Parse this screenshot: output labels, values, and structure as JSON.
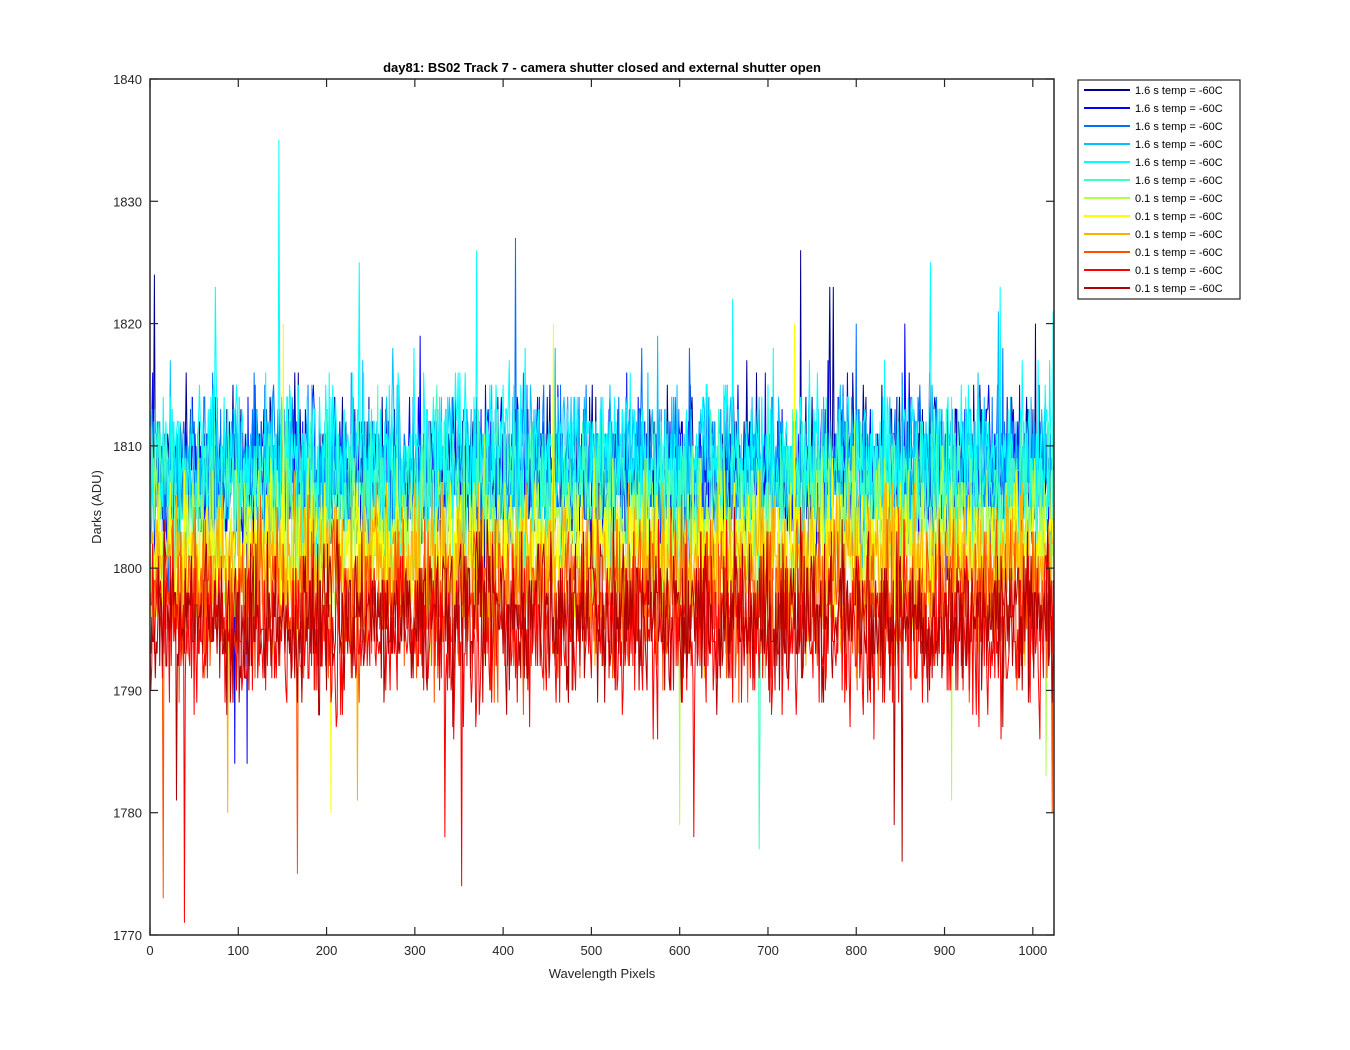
{
  "chart_data": {
    "type": "line",
    "title": "day81: BS02  Track 7 - camera shutter closed and external shutter open",
    "xlabel": "Wavelength Pixels",
    "ylabel": "Darks (ADU)",
    "xlim": [
      0,
      1024
    ],
    "ylim": [
      1770,
      1840
    ],
    "xticks": [
      0,
      100,
      200,
      300,
      400,
      500,
      600,
      700,
      800,
      900,
      1000
    ],
    "yticks": [
      1770,
      1780,
      1790,
      1800,
      1810,
      1820,
      1830,
      1840
    ],
    "grid": false,
    "legend_position": "outside-top-right",
    "n_points": 1024,
    "series": [
      {
        "name": "1.6 s temp = -60C",
        "color": "#00008f",
        "mean": 1808,
        "spread": 3.2,
        "spikes": [
          [
            5,
            1824
          ],
          [
            737,
            1826
          ],
          [
            770,
            1823
          ],
          [
            774,
            1823
          ],
          [
            1003,
            1820
          ]
        ]
      },
      {
        "name": "1.6 s temp = -60C",
        "color": "#0000ff",
        "mean": 1807.5,
        "spread": 3.2,
        "spikes": [
          [
            3,
            1816
          ],
          [
            96,
            1784
          ],
          [
            110,
            1784
          ],
          [
            306,
            1819
          ],
          [
            855,
            1820
          ]
        ]
      },
      {
        "name": "1.6 s temp = -60C",
        "color": "#0070ff",
        "mean": 1807.5,
        "spread": 3.2,
        "spikes": [
          [
            414,
            1827
          ],
          [
            557,
            1818
          ],
          [
            611,
            1818
          ],
          [
            800,
            1820
          ]
        ]
      },
      {
        "name": "1.6 s temp = -60C",
        "color": "#00bfff",
        "mean": 1808,
        "spread": 3.2,
        "spikes": [
          [
            275,
            1818
          ],
          [
            459,
            1818
          ],
          [
            575,
            1819
          ],
          [
            961,
            1821
          ]
        ]
      },
      {
        "name": "1.6 s temp = -60C",
        "color": "#00ffff",
        "mean": 1809,
        "spread": 3.2,
        "spikes": [
          [
            146,
            1835
          ],
          [
            74,
            1823
          ],
          [
            237,
            1825
          ],
          [
            370,
            1826
          ],
          [
            660,
            1822
          ],
          [
            884,
            1825
          ],
          [
            963,
            1823
          ],
          [
            1023,
            1821
          ]
        ]
      },
      {
        "name": "1.6 s temp = -60C",
        "color": "#40ffbf",
        "mean": 1806,
        "spread": 3.2,
        "spikes": [
          [
            690,
            1777
          ],
          [
            691,
            1787
          ]
        ]
      },
      {
        "name": "0.1 s temp = -60C",
        "color": "#afff50",
        "mean": 1802,
        "spread": 3.2,
        "spikes": [
          [
            600,
            1779
          ],
          [
            908,
            1781
          ],
          [
            1015,
            1783
          ]
        ]
      },
      {
        "name": "0.1 s temp = -60C",
        "color": "#ffff00",
        "mean": 1801,
        "spread": 3.2,
        "spikes": [
          [
            151,
            1820
          ],
          [
            205,
            1780
          ],
          [
            457,
            1820
          ],
          [
            730,
            1820
          ]
        ]
      },
      {
        "name": "0.1 s temp = -60C",
        "color": "#ffaf00",
        "mean": 1800,
        "spread": 3.2,
        "spikes": [
          [
            88,
            1780
          ],
          [
            235,
            1781
          ]
        ]
      },
      {
        "name": "0.1 s temp = -60C",
        "color": "#ff5000",
        "mean": 1797,
        "spread": 3.2,
        "spikes": [
          [
            15,
            1773
          ],
          [
            167,
            1775
          ],
          [
            1022,
            1780
          ]
        ]
      },
      {
        "name": "0.1 s temp = -60C",
        "color": "#ff0000",
        "mean": 1795,
        "spread": 3.2,
        "spikes": [
          [
            39,
            1771
          ],
          [
            353,
            1774
          ],
          [
            334,
            1778
          ],
          [
            616,
            1778
          ]
        ]
      },
      {
        "name": "0.1 s temp = -60C",
        "color": "#af0000",
        "mean": 1796,
        "spread": 3.2,
        "spikes": [
          [
            852,
            1776
          ],
          [
            843,
            1779
          ],
          [
            30,
            1781
          ]
        ]
      }
    ]
  }
}
